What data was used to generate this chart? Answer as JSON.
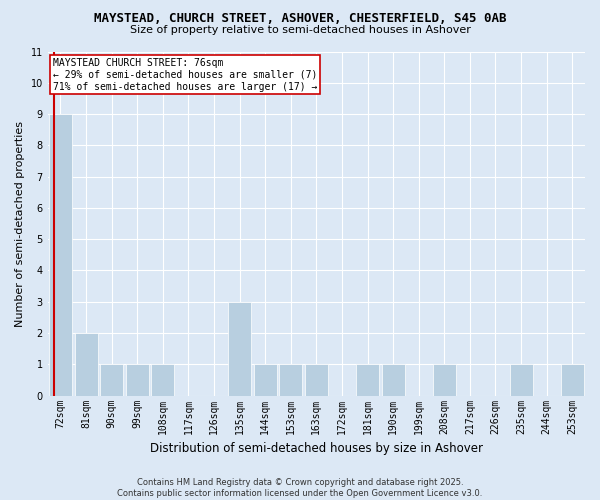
{
  "title": "MAYSTEAD, CHURCH STREET, ASHOVER, CHESTERFIELD, S45 0AB",
  "subtitle": "Size of property relative to semi-detached houses in Ashover",
  "xlabel": "Distribution of semi-detached houses by size in Ashover",
  "ylabel": "Number of semi-detached properties",
  "categories": [
    "72sqm",
    "81sqm",
    "90sqm",
    "99sqm",
    "108sqm",
    "117sqm",
    "126sqm",
    "135sqm",
    "144sqm",
    "153sqm",
    "163sqm",
    "172sqm",
    "181sqm",
    "190sqm",
    "199sqm",
    "208sqm",
    "217sqm",
    "226sqm",
    "235sqm",
    "244sqm",
    "253sqm"
  ],
  "values": [
    9,
    2,
    1,
    1,
    1,
    0,
    0,
    3,
    1,
    1,
    1,
    0,
    1,
    1,
    0,
    1,
    0,
    0,
    1,
    0,
    1
  ],
  "bar_color": "#b8cfe0",
  "subject_label": "MAYSTEAD CHURCH STREET: 76sqm",
  "pct_smaller": 29,
  "n_smaller": 7,
  "pct_larger": 71,
  "n_larger": 17,
  "ylim": [
    0,
    11
  ],
  "yticks": [
    0,
    1,
    2,
    3,
    4,
    5,
    6,
    7,
    8,
    9,
    10,
    11
  ],
  "background_color": "#dce8f5",
  "bar_edge_color": "#ffffff",
  "grid_color": "#ffffff",
  "footer": "Contains HM Land Registry data © Crown copyright and database right 2025.\nContains public sector information licensed under the Open Government Licence v3.0.",
  "annotation_box_facecolor": "#ffffff",
  "annotation_box_edgecolor": "#cc0000",
  "subject_line_color": "#cc0000",
  "title_fontsize": 9,
  "subtitle_fontsize": 8,
  "ylabel_fontsize": 8,
  "xlabel_fontsize": 8.5,
  "tick_fontsize": 7,
  "annotation_fontsize": 7,
  "footer_fontsize": 6
}
